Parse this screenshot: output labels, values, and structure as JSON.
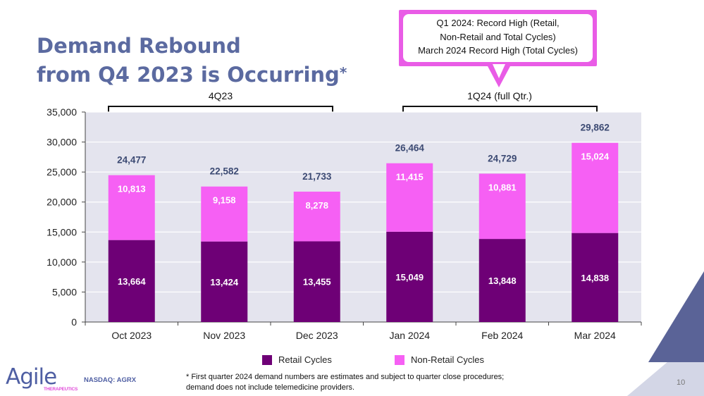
{
  "title": {
    "line1": "Demand Rebound",
    "line2": "from Q4 2023 is Occurring",
    "star": "*"
  },
  "callout": {
    "lines": [
      "Q1 2024:  Record High (Retail,",
      "Non-Retail and Total Cycles)",
      "March 2024 Record High (Total Cycles)"
    ]
  },
  "brackets": [
    {
      "label": "4Q23"
    },
    {
      "label": "1Q24 (full Qtr.)"
    }
  ],
  "chart_data": {
    "type": "bar",
    "stacked": true,
    "categories": [
      "Oct 2023",
      "Nov 2023",
      "Dec 2023",
      "Jan 2024",
      "Feb 2024",
      "Mar 2024"
    ],
    "series": [
      {
        "name": "Retail Cycles",
        "color": "#6e0076",
        "values": [
          13664,
          13424,
          13455,
          15049,
          13848,
          14838
        ],
        "labels": [
          "13,664",
          "13,424",
          "13,455",
          "15,049",
          "13,848",
          "14,838"
        ]
      },
      {
        "name": "Non-Retail Cycles",
        "color": "#f660f4",
        "values": [
          10813,
          9158,
          8278,
          11415,
          10881,
          15024
        ],
        "labels": [
          "10,813",
          "9,158",
          "8,278",
          "11,415",
          "10,881",
          "15,024"
        ]
      }
    ],
    "totals": [
      24477,
      22582,
      21733,
      26464,
      24729,
      29862
    ],
    "total_labels": [
      "24,477",
      "22,582",
      "21,733",
      "26,464",
      "24,729",
      "29,862"
    ],
    "ylim": [
      0,
      35000
    ],
    "yticks": [
      0,
      5000,
      10000,
      15000,
      20000,
      25000,
      30000,
      35000
    ],
    "ytick_labels": [
      "0",
      "5,000",
      "10,000",
      "15,000",
      "20,000",
      "25,000",
      "30,000",
      "35,000"
    ],
    "grid": true,
    "legend": "bottom-center",
    "plot_background": "#e4e4ee",
    "total_label_color": "#3c4a73"
  },
  "legend": {
    "retail_label": "Retail Cycles",
    "nonretail_label": "Non-Retail Cycles"
  },
  "footer": {
    "logo_word": "Agile",
    "logo_sub": "THERAPEUTICS",
    "ticker": "NASDAQ: AGRX",
    "footnote_line1": "* First quarter 2024 demand numbers are estimates and subject to quarter close procedures;",
    "footnote_line2": "demand does not include telemedicine providers.",
    "page_number": "10"
  },
  "colors": {
    "title": "#5b6aa0",
    "callout_border": "#e95ce6",
    "corner_light": "#d3d6e6",
    "corner_dark": "#5a6397"
  }
}
